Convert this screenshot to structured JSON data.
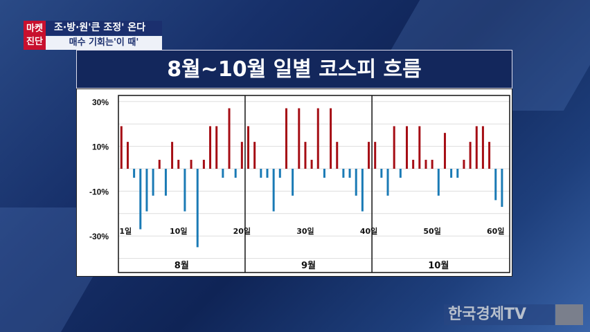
{
  "caption": {
    "badge_line1": "마켓",
    "badge_line2": "진단",
    "headline": "조·방·원'큰 조정' 온다",
    "subline": "매수 기회는'이 때'"
  },
  "channel_logo": "한국경제TV",
  "colors": {
    "up": "#a50d14",
    "down": "#1a7ab5"
  },
  "chart_data": {
    "type": "bar",
    "title": "8월~10월 일별 코스피 흐름",
    "xlabel": "",
    "ylabel": "",
    "ylim": [
      -40,
      30
    ],
    "yticks": [
      30,
      20,
      10,
      0,
      -10,
      -20,
      -30,
      -40
    ],
    "ytick_labels": [
      {
        "value": 30,
        "label": "30%"
      },
      {
        "value": 10,
        "label": "10%"
      },
      {
        "value": -10,
        "label": "-10%"
      },
      {
        "value": -30,
        "label": "-30%"
      }
    ],
    "grid": true,
    "day_labels": [
      {
        "day": 1,
        "label": "1일"
      },
      {
        "day": 10,
        "label": "10일"
      },
      {
        "day": 20,
        "label": "20일"
      },
      {
        "day": 30,
        "label": "30일"
      },
      {
        "day": 40,
        "label": "40일"
      },
      {
        "day": 50,
        "label": "50일"
      },
      {
        "day": 60,
        "label": "60일"
      }
    ],
    "months": [
      {
        "label": "8월",
        "start_day": 1,
        "end_day": 20
      },
      {
        "label": "9월",
        "start_day": 21,
        "end_day": 40
      },
      {
        "label": "10월",
        "start_day": 41,
        "end_day": 61
      }
    ],
    "values": [
      19,
      12,
      -4,
      -27,
      -19,
      -12,
      4,
      -12,
      12,
      4,
      -19,
      4,
      -35,
      4,
      19,
      19,
      -4,
      27,
      -4,
      12,
      19,
      12,
      -4,
      -4,
      -19,
      -4,
      27,
      -12,
      27,
      12,
      4,
      27,
      -4,
      27,
      12,
      -4,
      -4,
      -12,
      -19,
      12,
      12,
      -4,
      -12,
      19,
      -4,
      19,
      4,
      19,
      4,
      4,
      -12,
      16,
      -4,
      -4,
      4,
      12,
      19,
      19,
      12,
      -14,
      -17
    ]
  }
}
